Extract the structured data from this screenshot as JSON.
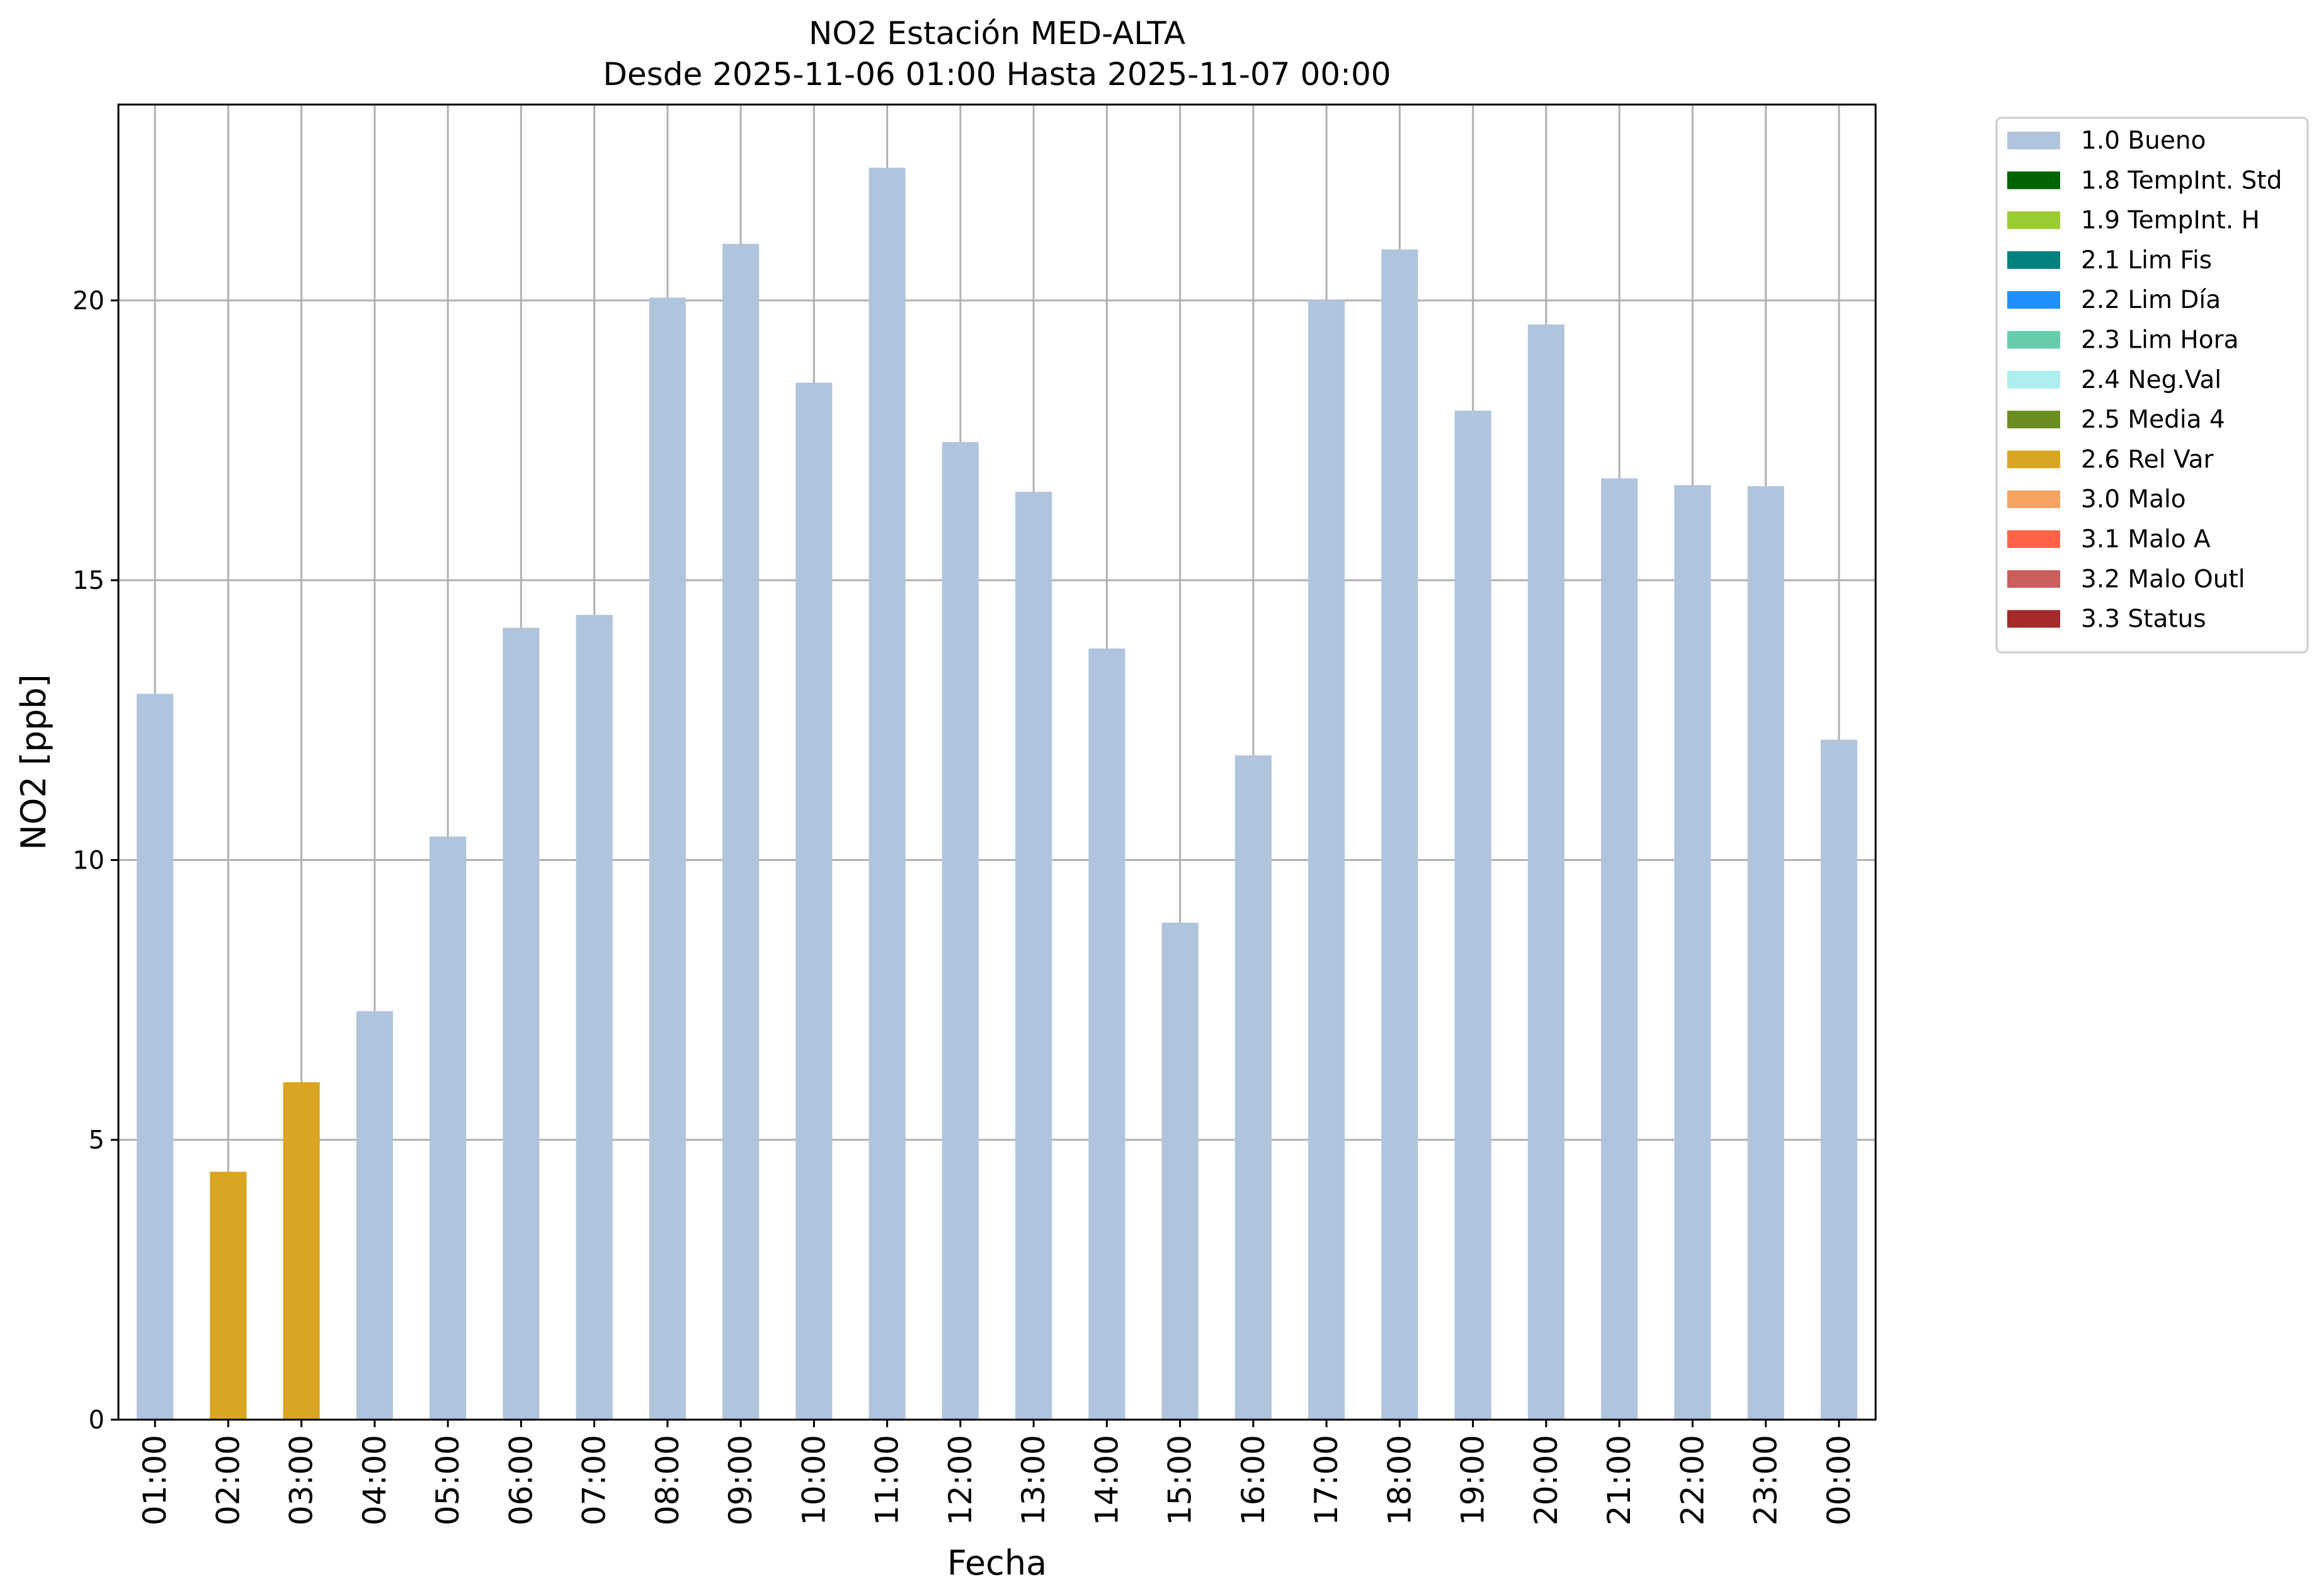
{
  "chart_data": {
    "type": "bar",
    "title": "NO2 Estación MED-ALTA",
    "subtitle": "Desde 2025-11-06 01:00 Hasta 2025-11-07 00:00",
    "xlabel": "Fecha",
    "ylabel": "NO2 [ppb]",
    "ylim": [
      0,
      23.5
    ],
    "yticks": [
      0,
      5,
      10,
      15,
      20
    ],
    "grid": true,
    "legend_placement": "outside-top-right",
    "categories": [
      "01:00",
      "02:00",
      "03:00",
      "04:00",
      "05:00",
      "06:00",
      "07:00",
      "08:00",
      "09:00",
      "10:00",
      "11:00",
      "12:00",
      "13:00",
      "14:00",
      "15:00",
      "16:00",
      "17:00",
      "18:00",
      "19:00",
      "20:00",
      "21:00",
      "22:00",
      "23:00",
      "00:00"
    ],
    "values": [
      12.97,
      4.43,
      6.03,
      7.3,
      10.42,
      14.15,
      14.38,
      20.05,
      21.01,
      18.53,
      22.37,
      17.47,
      16.58,
      13.78,
      8.88,
      11.87,
      20.01,
      20.91,
      18.03,
      19.57,
      16.82,
      16.7,
      16.68,
      12.15
    ],
    "flags": [
      "2.6 Rel Var"
    ],
    "bar_flags": [
      "1.0 Bueno",
      "2.6 Rel Var",
      "2.6 Rel Var",
      "1.0 Bueno",
      "1.0 Bueno",
      "1.0 Bueno",
      "1.0 Bueno",
      "1.0 Bueno",
      "1.0 Bueno",
      "1.0 Bueno",
      "1.0 Bueno",
      "1.0 Bueno",
      "1.0 Bueno",
      "1.0 Bueno",
      "1.0 Bueno",
      "1.0 Bueno",
      "1.0 Bueno",
      "1.0 Bueno",
      "1.0 Bueno",
      "1.0 Bueno",
      "1.0 Bueno",
      "1.0 Bueno",
      "1.0 Bueno",
      "1.0 Bueno"
    ],
    "legend": [
      {
        "label": "1.0 Bueno",
        "color": "#b0c4de"
      },
      {
        "label": "1.8 TempInt. Std",
        "color": "#006400"
      },
      {
        "label": "1.9 TempInt. H",
        "color": "#9acd32"
      },
      {
        "label": "2.1 Lim Fis",
        "color": "#008080"
      },
      {
        "label": "2.2 Lim Día",
        "color": "#1e90ff"
      },
      {
        "label": "2.3 Lim Hora",
        "color": "#66cdaa"
      },
      {
        "label": "2.4 Neg.Val",
        "color": "#afeeee"
      },
      {
        "label": "2.5 Media 4",
        "color": "#6b8e23"
      },
      {
        "label": "2.6 Rel Var",
        "color": "#daa520"
      },
      {
        "label": "3.0 Malo",
        "color": "#f4a460"
      },
      {
        "label": "3.1 Malo A",
        "color": "#ff6347"
      },
      {
        "label": "3.2 Malo Outl",
        "color": "#cd5c5c"
      },
      {
        "label": "3.3 Status",
        "color": "#a52a2a"
      }
    ]
  }
}
